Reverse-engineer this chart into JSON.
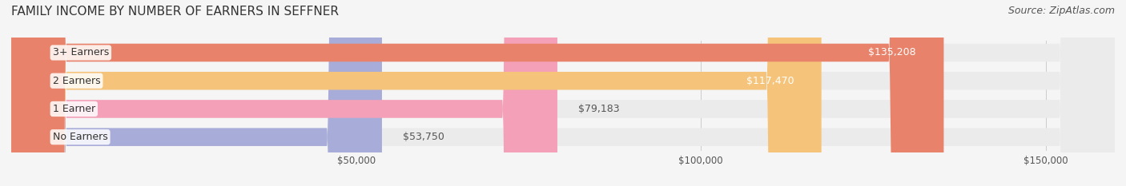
{
  "title": "FAMILY INCOME BY NUMBER OF EARNERS IN SEFFNER",
  "source": "Source: ZipAtlas.com",
  "categories": [
    "No Earners",
    "1 Earner",
    "2 Earners",
    "3+ Earners"
  ],
  "values": [
    53750,
    79183,
    117470,
    135208
  ],
  "bar_colors": [
    "#a8acd8",
    "#f4a0b8",
    "#f5c47a",
    "#e8826a"
  ],
  "bar_bg_color": "#ebebeb",
  "label_colors": [
    "#555555",
    "#555555",
    "#ffffff",
    "#ffffff"
  ],
  "value_labels": [
    "$53,750",
    "$79,183",
    "$117,470",
    "$135,208"
  ],
  "xlabel": "",
  "xlim": [
    0,
    160000
  ],
  "xticks": [
    50000,
    100000,
    150000
  ],
  "xtick_labels": [
    "$50,000",
    "$100,000",
    "$150,000"
  ],
  "background_color": "#f5f5f5",
  "title_fontsize": 11,
  "source_fontsize": 9,
  "label_fontsize": 9,
  "value_fontsize": 9,
  "tick_fontsize": 8.5
}
